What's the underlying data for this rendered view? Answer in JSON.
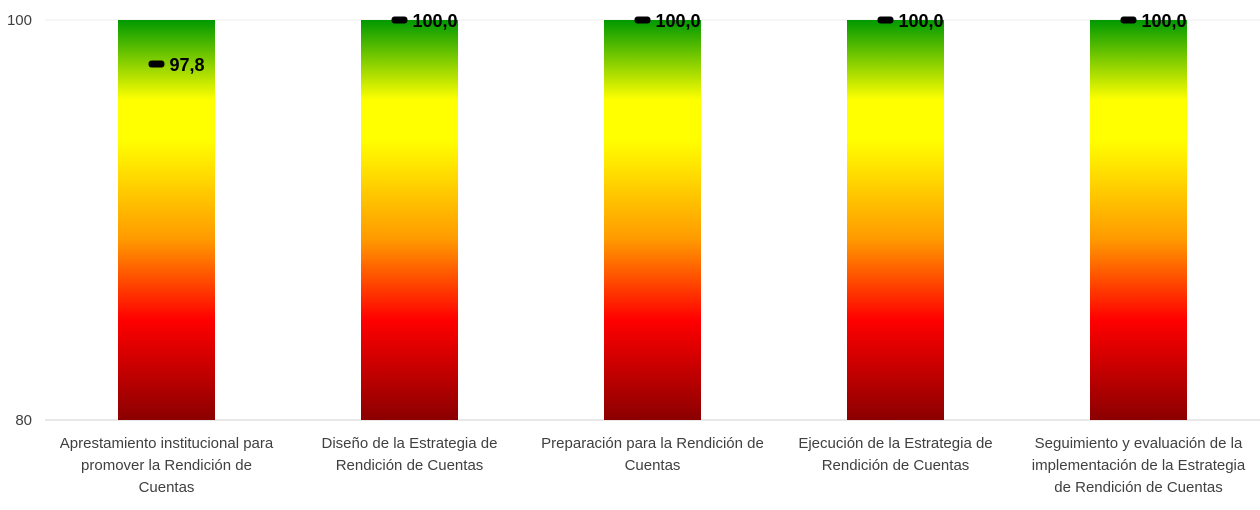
{
  "chart_data": {
    "type": "bar",
    "categories": [
      [
        "Aprestamiento institucional para",
        "promover la Rendición de",
        "Cuentas"
      ],
      [
        "Diseño de la Estrategia de",
        "Rendición de Cuentas"
      ],
      [
        "Preparación para la Rendición de",
        "Cuentas"
      ],
      [
        "Ejecución de la Estrategia de",
        "Rendición de Cuentas"
      ],
      [
        "Seguimiento y evaluación de la",
        "implementación de la Estrategia",
        "de Rendición de Cuentas"
      ]
    ],
    "series": [
      {
        "values": [
          97.8,
          100.0,
          100.0,
          100.0,
          100.0
        ]
      }
    ],
    "data_labels": [
      "97,8",
      "100,0",
      "100,0",
      "100,0",
      "100,0"
    ],
    "ylim": [
      80,
      100
    ],
    "yticks": [
      "100",
      "80"
    ],
    "bar_background_range": [
      80,
      100
    ],
    "gradient_colors": [
      "#009900",
      "#ffff00",
      "#ff9900",
      "#ff0000",
      "#8b0000"
    ],
    "marker_color": "#000000",
    "grid": false,
    "legend": "none"
  }
}
